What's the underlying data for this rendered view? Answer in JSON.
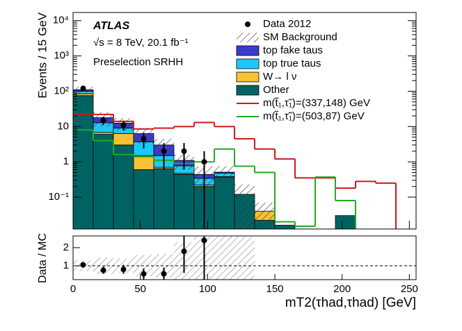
{
  "chart_data": [
    {
      "type": "histogram",
      "bins": [
        0,
        15,
        30,
        45,
        60,
        75,
        90,
        105,
        120,
        135,
        150,
        165,
        180,
        195,
        210,
        225,
        240,
        255
      ],
      "xlim": [
        0,
        255
      ],
      "ylim": [
        0.0125,
        17000
      ],
      "log_y": true,
      "yticks": [
        {
          "value": 10000,
          "label": "10⁴"
        },
        {
          "value": 1000,
          "label": "10³"
        },
        {
          "value": 100,
          "label": "10²"
        },
        10,
        1,
        {
          "value": 0.1,
          "label": "10⁻¹"
        }
      ],
      "y_label": "Events / 15 GeV",
      "annotations": [
        "ATLAS",
        "√s = 8 TeV, 20.1 fb⁻¹",
        "Preselection SRHH"
      ],
      "data": {
        "name": "Data 2012",
        "color": "#000000",
        "x": [
          7.5,
          22.5,
          37.5,
          52.5,
          67.5,
          82.5,
          97.5
        ],
        "values": [
          120,
          15,
          11,
          4.5,
          2,
          2,
          1
        ],
        "errors": [
          11,
          4,
          3.3,
          2.1,
          1.4,
          1.4,
          1
        ]
      },
      "background": {
        "name": "SM Background",
        "uncertainty": [
          25,
          8,
          5,
          3,
          1.5,
          0.5,
          0.3,
          0.25,
          0.11,
          0.03,
          0,
          0,
          0,
          0,
          0,
          0,
          0
        ]
      },
      "stacked": [
        {
          "name": "top fake taus",
          "color": "#3b3bd0",
          "values": [
            10,
            5,
            3.5,
            2.6,
            1.5,
            0.33,
            0.1,
            0.03,
            0,
            0,
            0,
            0,
            0,
            0,
            0,
            0,
            0
          ]
        },
        {
          "name": "top true taus",
          "color": "#1ec8f5",
          "values": [
            15,
            6,
            2.7,
            2.2,
            0.8,
            0.3,
            0.12,
            0.1,
            0,
            0,
            0,
            0,
            0,
            0,
            0,
            0,
            0
          ]
        },
        {
          "name": "W→ l ν",
          "color": "#f7c234",
          "values": [
            10,
            0.8,
            3.3,
            0.9,
            0.06,
            0.03,
            0.02,
            0.01,
            0,
            0.018,
            0,
            0,
            0,
            0,
            0,
            0,
            0
          ]
        },
        {
          "name": "Other",
          "color": "#006363",
          "values": [
            75,
            6,
            3,
            0.6,
            0.64,
            0.44,
            0.2,
            0.37,
            0.12,
            0.022,
            0.016,
            0,
            0,
            0.03,
            0,
            0,
            0
          ]
        }
      ],
      "signals": [
        {
          "name": "m(t̃₁,τ̃₁)=(337,148) GeV",
          "color": "#cc1a1a",
          "values": [
            22,
            22,
            14,
            8.5,
            9,
            10,
            13,
            10,
            4.5,
            2.3,
            1.2,
            0.35,
            0.35,
            0.18,
            0.28,
            0.25,
            0
          ]
        },
        {
          "name": "m(t̃₁,τ̃₁)=(503,87) GeV",
          "color": "#22aa22",
          "values": [
            8,
            4,
            1.6,
            1.4,
            1.1,
            0.9,
            1,
            2.3,
            0.75,
            0.5,
            0.02,
            0.015,
            0.37,
            0.08,
            0,
            0,
            0
          ]
        }
      ]
    },
    {
      "type": "ratio",
      "xlim": [
        0,
        255
      ],
      "xticks": [
        0,
        50,
        100,
        150,
        200,
        250
      ],
      "x_label": "mT2(τhad,τhad) [GeV]",
      "ylim": [
        0.23,
        2.65
      ],
      "yticks": [
        1,
        2
      ],
      "y_label": "Data / MC",
      "reference": 1,
      "band": [
        0.3,
        0.45,
        0.4,
        0.6,
        0.65,
        1.3,
        1.6,
        1.7,
        1.6
      ],
      "x": [
        7.5,
        22.5,
        37.5,
        52.5,
        67.5,
        82.5,
        97.5
      ],
      "values": [
        1.05,
        0.75,
        0.8,
        0.55,
        0.55,
        1.8,
        2.4
      ],
      "errors": [
        0.1,
        0.2,
        0.25,
        0.3,
        0.35,
        1.2,
        2.4
      ]
    }
  ]
}
